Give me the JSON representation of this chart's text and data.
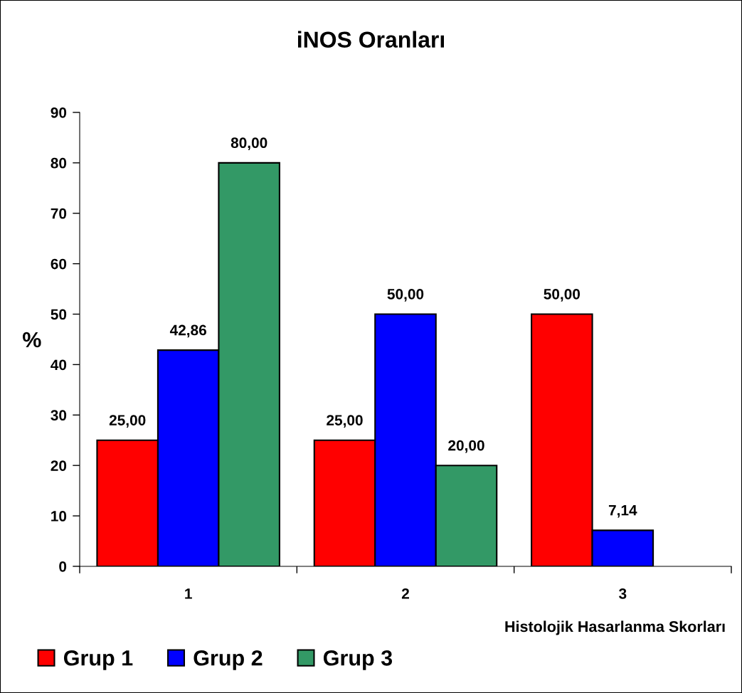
{
  "chart_data": {
    "type": "bar",
    "title": "iNOS Oranları",
    "xlabel": "Histolojik Hasarlanma Skorları",
    "ylabel": "%",
    "categories": [
      "1",
      "2",
      "3"
    ],
    "series": [
      {
        "name": "Grup 1",
        "color": "#ff0000",
        "values": [
          25,
          25,
          50
        ],
        "value_labels": [
          "25,00",
          "25,00",
          "50,00"
        ]
      },
      {
        "name": "Grup 2",
        "color": "#0000ff",
        "values": [
          42.86,
          50,
          7.14
        ],
        "value_labels": [
          "42,86",
          "50,00",
          "7,14"
        ]
      },
      {
        "name": "Grup 3",
        "color": "#339966",
        "values": [
          80,
          20,
          null
        ],
        "value_labels": [
          "80,00",
          "20,00",
          null
        ]
      }
    ],
    "ylim": [
      0,
      90
    ],
    "yticks": [
      0,
      10,
      20,
      30,
      40,
      50,
      60,
      70,
      80,
      90
    ],
    "grid": false,
    "legend": "bottom left"
  }
}
